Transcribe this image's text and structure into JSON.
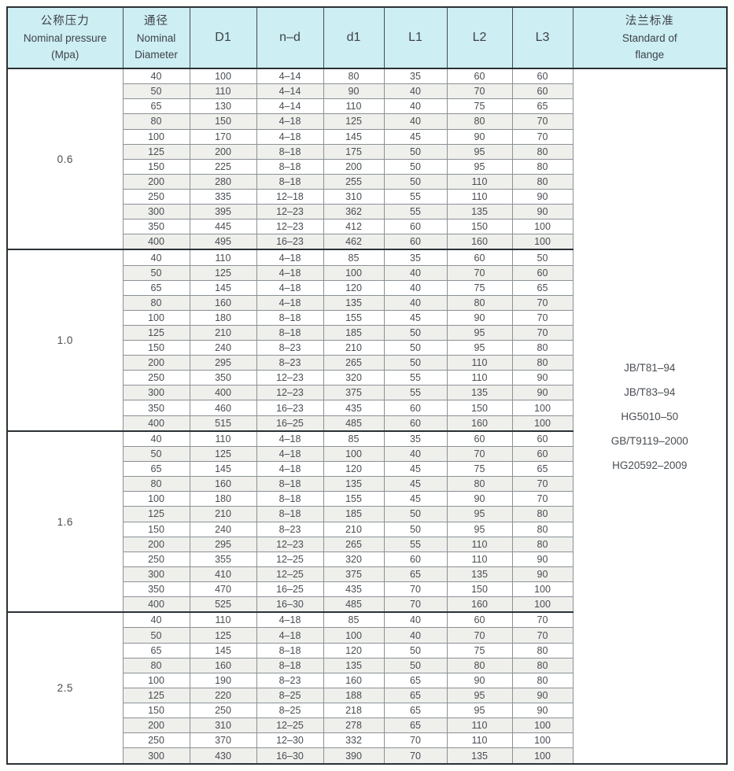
{
  "colors": {
    "header_bg": "#cdeef3",
    "stripe": "#efefec",
    "frame": "#2c3136",
    "grid": "#8a9196",
    "text": "#43484d"
  },
  "table": {
    "headers": {
      "pressure": {
        "zh": "公称压力",
        "en": "Nominal pressure",
        "unit": "(Mpa)"
      },
      "diameter": {
        "zh": "通径",
        "en1": "Nominal",
        "en2": "Diameter"
      },
      "d1_outer": "D1",
      "nd": "n–d",
      "d1_inner": "d1",
      "l1": "L1",
      "l2": "L2",
      "l3": "L3",
      "standard": {
        "zh": "法兰标准",
        "en1": "Standard of",
        "en2": "flange"
      }
    },
    "groups": [
      {
        "pressure": "0.6",
        "rows": [
          [
            "40",
            "100",
            "4–14",
            "80",
            "35",
            "60",
            "60"
          ],
          [
            "50",
            "110",
            "4–14",
            "90",
            "40",
            "70",
            "60"
          ],
          [
            "65",
            "130",
            "4–14",
            "110",
            "40",
            "75",
            "65"
          ],
          [
            "80",
            "150",
            "4–18",
            "125",
            "40",
            "80",
            "70"
          ],
          [
            "100",
            "170",
            "4–18",
            "145",
            "45",
            "90",
            "70"
          ],
          [
            "125",
            "200",
            "8–18",
            "175",
            "50",
            "95",
            "80"
          ],
          [
            "150",
            "225",
            "8–18",
            "200",
            "50",
            "95",
            "80"
          ],
          [
            "200",
            "280",
            "8–18",
            "255",
            "50",
            "110",
            "80"
          ],
          [
            "250",
            "335",
            "12–18",
            "310",
            "55",
            "110",
            "90"
          ],
          [
            "300",
            "395",
            "12–23",
            "362",
            "55",
            "135",
            "90"
          ],
          [
            "350",
            "445",
            "12–23",
            "412",
            "60",
            "150",
            "100"
          ],
          [
            "400",
            "495",
            "16–23",
            "462",
            "60",
            "160",
            "100"
          ]
        ]
      },
      {
        "pressure": "1.0",
        "rows": [
          [
            "40",
            "110",
            "4–18",
            "85",
            "35",
            "60",
            "50"
          ],
          [
            "50",
            "125",
            "4–18",
            "100",
            "40",
            "70",
            "60"
          ],
          [
            "65",
            "145",
            "4–18",
            "120",
            "40",
            "75",
            "65"
          ],
          [
            "80",
            "160",
            "4–18",
            "135",
            "40",
            "80",
            "70"
          ],
          [
            "100",
            "180",
            "8–18",
            "155",
            "45",
            "90",
            "70"
          ],
          [
            "125",
            "210",
            "8–18",
            "185",
            "50",
            "95",
            "70"
          ],
          [
            "150",
            "240",
            "8–23",
            "210",
            "50",
            "95",
            "80"
          ],
          [
            "200",
            "295",
            "8–23",
            "265",
            "50",
            "110",
            "80"
          ],
          [
            "250",
            "350",
            "12–23",
            "320",
            "55",
            "110",
            "90"
          ],
          [
            "300",
            "400",
            "12–23",
            "375",
            "55",
            "135",
            "90"
          ],
          [
            "350",
            "460",
            "16–23",
            "435",
            "60",
            "150",
            "100"
          ],
          [
            "400",
            "515",
            "16–25",
            "485",
            "60",
            "160",
            "100"
          ]
        ]
      },
      {
        "pressure": "1.6",
        "rows": [
          [
            "40",
            "110",
            "4–18",
            "85",
            "35",
            "60",
            "60"
          ],
          [
            "50",
            "125",
            "4–18",
            "100",
            "40",
            "70",
            "60"
          ],
          [
            "65",
            "145",
            "4–18",
            "120",
            "45",
            "75",
            "65"
          ],
          [
            "80",
            "160",
            "8–18",
            "135",
            "45",
            "80",
            "70"
          ],
          [
            "100",
            "180",
            "8–18",
            "155",
            "45",
            "90",
            "70"
          ],
          [
            "125",
            "210",
            "8–18",
            "185",
            "50",
            "95",
            "80"
          ],
          [
            "150",
            "240",
            "8–23",
            "210",
            "50",
            "95",
            "80"
          ],
          [
            "200",
            "295",
            "12–23",
            "265",
            "55",
            "110",
            "80"
          ],
          [
            "250",
            "355",
            "12–25",
            "320",
            "60",
            "110",
            "90"
          ],
          [
            "300",
            "410",
            "12–25",
            "375",
            "65",
            "135",
            "90"
          ],
          [
            "350",
            "470",
            "16–25",
            "435",
            "70",
            "150",
            "100"
          ],
          [
            "400",
            "525",
            "16–30",
            "485",
            "70",
            "160",
            "100"
          ]
        ]
      },
      {
        "pressure": "2.5",
        "rows": [
          [
            "40",
            "110",
            "4–18",
            "85",
            "40",
            "60",
            "70"
          ],
          [
            "50",
            "125",
            "4–18",
            "100",
            "40",
            "70",
            "70"
          ],
          [
            "65",
            "145",
            "8–18",
            "120",
            "50",
            "75",
            "80"
          ],
          [
            "80",
            "160",
            "8–18",
            "135",
            "50",
            "80",
            "80"
          ],
          [
            "100",
            "190",
            "8–23",
            "160",
            "65",
            "90",
            "80"
          ],
          [
            "125",
            "220",
            "8–25",
            "188",
            "65",
            "95",
            "90"
          ],
          [
            "150",
            "250",
            "8–25",
            "218",
            "65",
            "95",
            "90"
          ],
          [
            "200",
            "310",
            "12–25",
            "278",
            "65",
            "110",
            "100"
          ],
          [
            "250",
            "370",
            "12–30",
            "332",
            "70",
            "110",
            "100"
          ],
          [
            "300",
            "430",
            "16–30",
            "390",
            "70",
            "135",
            "100"
          ]
        ]
      }
    ],
    "standards": [
      "JB/T81–94",
      "JB/T83–94",
      "HG5010–50",
      "GB/T9119–2000",
      "HG20592–2009"
    ]
  }
}
